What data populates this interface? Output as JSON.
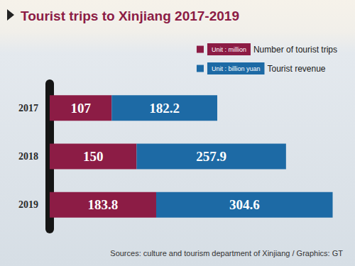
{
  "chart_data": {
    "type": "bar",
    "title": "Tourist trips to Xinjiang 2017-2019",
    "source": "Sources: culture and tourism department of Xinjiang / Graphics: GT",
    "categories": [
      "2017",
      "2018",
      "2019"
    ],
    "series": [
      {
        "name": "Number of tourist trips",
        "unit": "Unit : million",
        "color": "#8c1c45",
        "values": [
          107,
          150,
          183.8
        ]
      },
      {
        "name": "Tourist revenue",
        "unit": "Unit : billion yuan",
        "color": "#1d6aa5",
        "values": [
          182.2,
          257.9,
          304.6
        ]
      }
    ],
    "orientation": "horizontal",
    "stacked": true,
    "data_labels": true,
    "xlim": [
      0,
      500
    ],
    "grid": false,
    "legend": "top-right",
    "tick_labels": "y"
  }
}
